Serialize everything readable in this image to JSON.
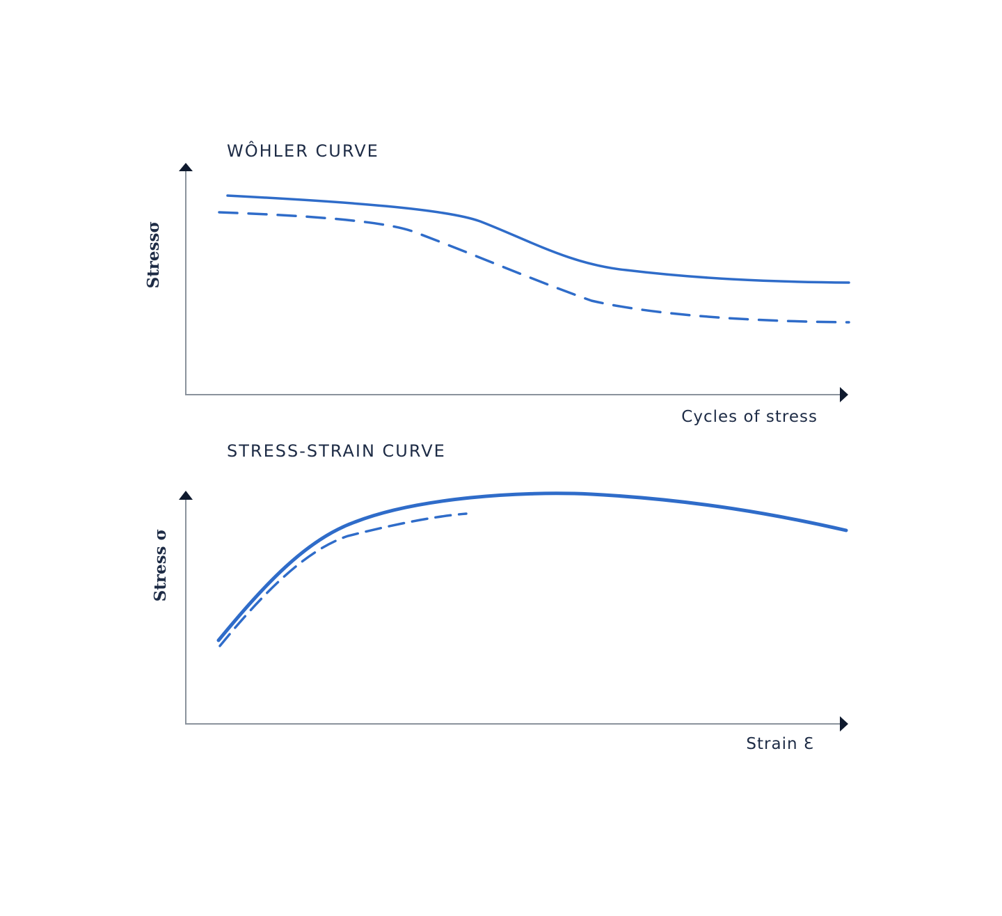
{
  "diagrams": [
    {
      "title": "WÔHLER CURVE",
      "y_axis_label": "Stressσ",
      "x_axis_label": "Cycles of stress"
    },
    {
      "title": "STRESS-STRAIN CURVE",
      "y_axis_label": "Stress σ",
      "x_axis_label": "Strain Ɛ"
    }
  ]
}
